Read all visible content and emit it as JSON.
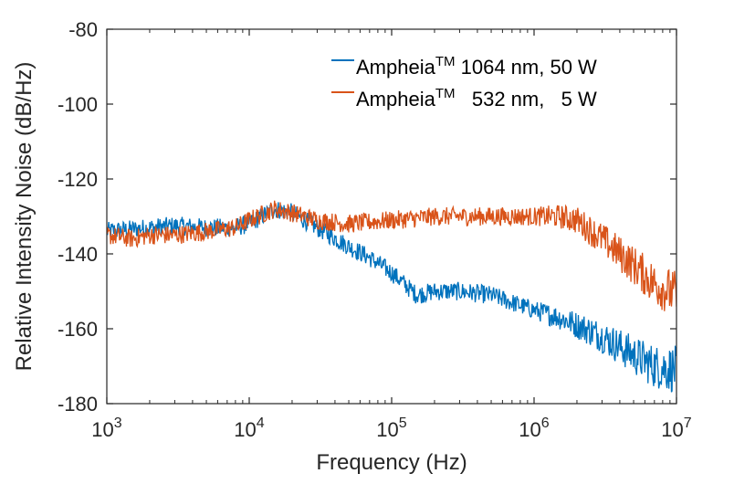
{
  "chart_data": {
    "type": "line",
    "xlabel": "Frequency (Hz)",
    "ylabel": "Relative Intensity Noise (dB/Hz)",
    "xscale": "log",
    "xlim": [
      1000,
      10000000
    ],
    "ylim": [
      -180,
      -80
    ],
    "grid": false,
    "legend_position": "top-right",
    "x_ticks": [
      {
        "value": 1000,
        "base": "10",
        "exp": "3"
      },
      {
        "value": 10000,
        "base": "10",
        "exp": "4"
      },
      {
        "value": 100000,
        "base": "10",
        "exp": "5"
      },
      {
        "value": 1000000,
        "base": "10",
        "exp": "6"
      },
      {
        "value": 10000000,
        "base": "10",
        "exp": "7"
      }
    ],
    "y_ticks": [
      {
        "value": -80,
        "label": "-80"
      },
      {
        "value": -100,
        "label": "-100"
      },
      {
        "value": -120,
        "label": "-120"
      },
      {
        "value": -140,
        "label": "-140"
      },
      {
        "value": -160,
        "label": "-160"
      },
      {
        "value": -180,
        "label": "-180"
      }
    ],
    "series": [
      {
        "name_main": "Ampheia",
        "name_sup": "TM",
        "name_rest": " 1064 nm, 50 W",
        "color": "#0072BD",
        "noise_db": 2.5,
        "x": [
          1000,
          2000,
          3000,
          5000,
          8000,
          10000,
          15000,
          20000,
          30000,
          50000,
          70000,
          100000,
          150000,
          200000,
          300000,
          500000,
          700000,
          1000000,
          1500000,
          2000000,
          3000000,
          5000000,
          7000000,
          10000000
        ],
        "y": [
          -134,
          -133,
          -132.5,
          -133,
          -133,
          -132,
          -128,
          -129,
          -133,
          -138,
          -141,
          -145,
          -151,
          -150,
          -150,
          -151,
          -153,
          -155,
          -157,
          -159,
          -162,
          -167,
          -170,
          -171
        ]
      },
      {
        "name_main": "Ampheia",
        "name_sup": "TM",
        "name_rest": "   532 nm,   5 W",
        "color": "#D95319",
        "noise_db": 2.5,
        "x": [
          1000,
          1500,
          2000,
          3000,
          5000,
          8000,
          10000,
          15000,
          20000,
          30000,
          50000,
          100000,
          150000,
          200000,
          300000,
          500000,
          1000000,
          1500000,
          2000000,
          3000000,
          4000000,
          5000000,
          7000000,
          10000000
        ],
        "y": [
          -135,
          -136,
          -135,
          -135,
          -134,
          -133,
          -131,
          -128,
          -129,
          -131,
          -132,
          -131,
          -130.5,
          -130,
          -130,
          -130,
          -130,
          -130,
          -131,
          -136,
          -140,
          -143,
          -148,
          -151
        ]
      }
    ]
  }
}
